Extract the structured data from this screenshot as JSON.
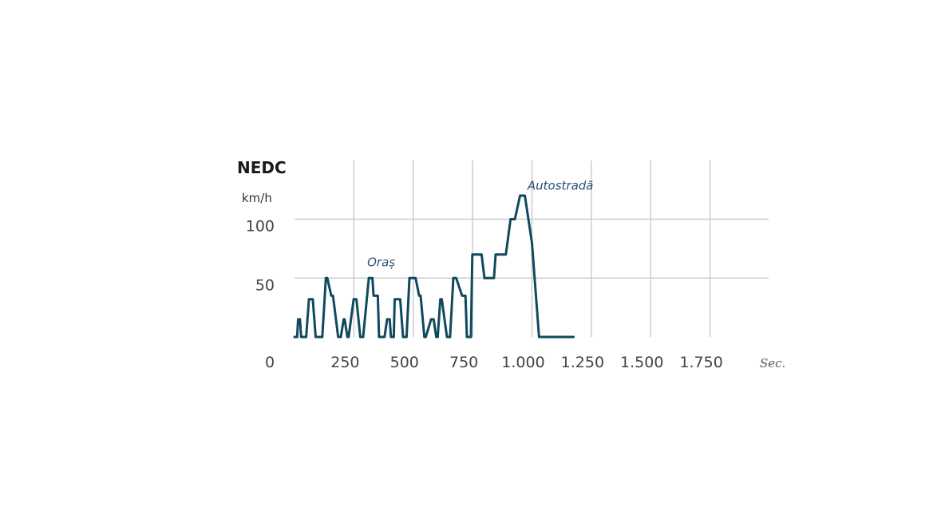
{
  "chart_data": {
    "type": "line",
    "title": "NEDC",
    "ylabel": "km/h",
    "xlabel": "Sec.",
    "xlim": [
      0,
      2000
    ],
    "ylim": [
      0,
      120
    ],
    "grid": true,
    "x_ticks": [
      {
        "value": 0,
        "label": "0"
      },
      {
        "value": 250,
        "label": "250"
      },
      {
        "value": 500,
        "label": "500"
      },
      {
        "value": 750,
        "label": "750"
      },
      {
        "value": 1000,
        "label": "1.000"
      },
      {
        "value": 1250,
        "label": "1.250"
      },
      {
        "value": 1500,
        "label": "1.500"
      },
      {
        "value": 1750,
        "label": "1.750"
      }
    ],
    "y_ticks": [
      {
        "value": 50,
        "label": "50"
      },
      {
        "value": 100,
        "label": "100"
      }
    ],
    "annotations": [
      {
        "text": "Oraș",
        "x": 365,
        "y": 60
      },
      {
        "text": "Autostradă",
        "x": 1120,
        "y": 125
      }
    ],
    "series": [
      {
        "color": "#0f4a5c",
        "x": [
          0,
          11,
          15,
          23,
          28,
          49,
          61,
          77,
          89,
          117,
          132,
          138,
          155,
          162,
          184,
          195,
          207,
          211,
          223,
          228,
          249,
          261,
          277,
          289,
          313,
          328,
          333,
          351,
          356,
          379,
          390,
          401,
          406,
          418,
          422,
          445,
          457,
          472,
          484,
          510,
          525,
          531,
          547,
          553,
          575,
          586,
          597,
          603,
          614,
          620,
          642,
          655,
          669,
          681,
          706,
          720,
          726,
          743,
          749,
          788,
          800,
          840,
          847,
          890,
          910,
          928,
          950,
          970,
          1000,
          1030,
          1050,
          1070,
          1110,
          1125,
          1145,
          1160,
          1175
        ],
        "y": [
          0,
          0,
          15,
          15,
          0,
          0,
          32,
          32,
          0,
          0,
          50,
          50,
          35,
          35,
          0,
          0,
          15,
          15,
          0,
          0,
          32,
          32,
          0,
          0,
          50,
          50,
          35,
          35,
          0,
          0,
          15,
          15,
          0,
          0,
          32,
          32,
          0,
          0,
          50,
          50,
          35,
          35,
          0,
          0,
          15,
          15,
          0,
          0,
          32,
          32,
          0,
          0,
          50,
          50,
          35,
          35,
          0,
          0,
          70,
          70,
          50,
          50,
          70,
          70,
          100,
          100,
          120,
          120,
          80,
          0,
          0,
          0,
          0,
          0,
          0,
          0,
          0
        ]
      }
    ]
  }
}
